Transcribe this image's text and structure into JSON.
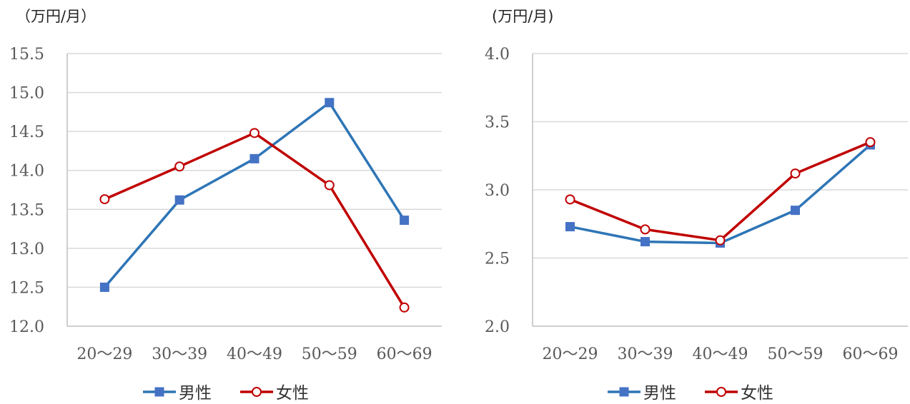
{
  "chart_data": [
    {
      "type": "line",
      "unit_label": "（万円/月）",
      "categories": [
        "20〜29",
        "30〜39",
        "40〜49",
        "50〜59",
        "60〜69"
      ],
      "ylim": [
        12.0,
        15.5
      ],
      "yticks": [
        "12.0",
        "12.5",
        "13.0",
        "13.5",
        "14.0",
        "14.5",
        "15.0",
        "15.5"
      ],
      "grid": true,
      "legend_position": "bottom",
      "series": [
        {
          "name": "男性",
          "color": "#2E75B6",
          "marker": "square",
          "values": [
            12.5,
            13.62,
            14.15,
            14.87,
            13.36
          ]
        },
        {
          "name": "女性",
          "color": "#C00000",
          "marker": "circle-open",
          "values": [
            13.63,
            14.05,
            14.48,
            13.81,
            12.24
          ]
        }
      ]
    },
    {
      "type": "line",
      "unit_label": "(万円/月)",
      "categories": [
        "20〜29",
        "30〜39",
        "40〜49",
        "50〜59",
        "60〜69"
      ],
      "ylim": [
        2.0,
        4.0
      ],
      "yticks": [
        "2.0",
        "2.5",
        "3.0",
        "3.5",
        "4.0"
      ],
      "grid": true,
      "legend_position": "bottom",
      "series": [
        {
          "name": "男性",
          "color": "#2E75B6",
          "marker": "square",
          "values": [
            2.73,
            2.62,
            2.61,
            2.85,
            3.33
          ]
        },
        {
          "name": "女性",
          "color": "#C00000",
          "marker": "circle-open",
          "values": [
            2.93,
            2.71,
            2.63,
            3.12,
            3.35
          ]
        }
      ]
    }
  ]
}
